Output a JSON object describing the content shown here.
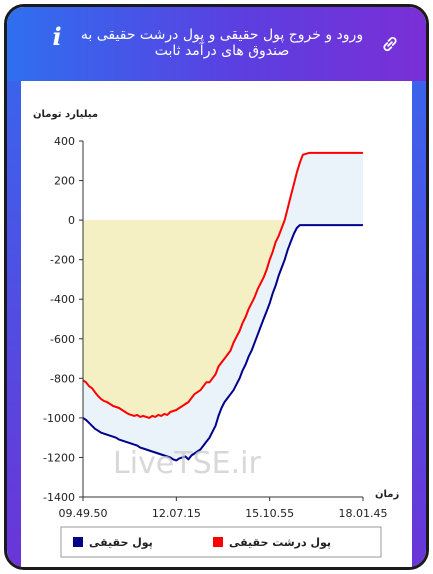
{
  "header": {
    "title": "ورود و خروج پول حقیقی و پول درشت حقیقی به صندوق های درآمد ثابت",
    "info_icon": "i",
    "link_icon": "link-icon"
  },
  "watermark": "LiveTSE.ir",
  "chart_data": {
    "type": "line",
    "ylabel": "میلیارد تومان",
    "xlabel": "زمان",
    "ylim": [
      -1400,
      400
    ],
    "y_ticks": [
      "400",
      "200",
      "0",
      "-200",
      "-400",
      "-600",
      "-800",
      "-1000",
      "-1200",
      "-1400"
    ],
    "x_ticks": [
      "09.49.50",
      "12.07.15",
      "15.10.55",
      "18.01.45"
    ],
    "grid": false,
    "legend_position": "bottom",
    "colors": {
      "big": "#ff0000",
      "real": "#00008b",
      "area_big": "#f5efc4",
      "area_between": "#eaf3fa"
    },
    "series": [
      {
        "name": "پول درشت حقیقی",
        "color": "#ff0000",
        "points": [
          [
            0,
            -810
          ],
          [
            2,
            -820
          ],
          [
            4,
            -840
          ],
          [
            6,
            -850
          ],
          [
            8,
            -870
          ],
          [
            10,
            -890
          ],
          [
            12,
            -905
          ],
          [
            14,
            -915
          ],
          [
            16,
            -920
          ],
          [
            18,
            -930
          ],
          [
            20,
            -940
          ],
          [
            22,
            -945
          ],
          [
            24,
            -950
          ],
          [
            26,
            -960
          ],
          [
            28,
            -970
          ],
          [
            30,
            -980
          ],
          [
            32,
            -985
          ],
          [
            34,
            -990
          ],
          [
            36,
            -985
          ],
          [
            38,
            -995
          ],
          [
            40,
            -990
          ],
          [
            42,
            -995
          ],
          [
            44,
            -1000
          ],
          [
            46,
            -990
          ],
          [
            48,
            -995
          ],
          [
            50,
            -985
          ],
          [
            52,
            -990
          ],
          [
            54,
            -980
          ],
          [
            56,
            -985
          ],
          [
            58,
            -970
          ],
          [
            60,
            -965
          ],
          [
            62,
            -960
          ],
          [
            64,
            -950
          ],
          [
            66,
            -940
          ],
          [
            68,
            -930
          ],
          [
            70,
            -920
          ],
          [
            72,
            -900
          ],
          [
            74,
            -880
          ],
          [
            76,
            -870
          ],
          [
            78,
            -860
          ],
          [
            80,
            -840
          ],
          [
            82,
            -820
          ],
          [
            84,
            -820
          ],
          [
            86,
            -800
          ],
          [
            88,
            -780
          ],
          [
            90,
            -740
          ],
          [
            92,
            -720
          ],
          [
            94,
            -700
          ],
          [
            96,
            -680
          ],
          [
            98,
            -660
          ],
          [
            100,
            -620
          ],
          [
            102,
            -590
          ],
          [
            104,
            -560
          ],
          [
            106,
            -520
          ],
          [
            108,
            -490
          ],
          [
            110,
            -450
          ],
          [
            112,
            -420
          ],
          [
            114,
            -390
          ],
          [
            116,
            -350
          ],
          [
            118,
            -320
          ],
          [
            120,
            -290
          ],
          [
            122,
            -250
          ],
          [
            124,
            -200
          ],
          [
            126,
            -160
          ],
          [
            128,
            -110
          ],
          [
            130,
            -80
          ],
          [
            132,
            -40
          ],
          [
            134,
            0
          ],
          [
            136,
            60
          ],
          [
            138,
            120
          ],
          [
            140,
            180
          ],
          [
            142,
            240
          ],
          [
            144,
            290
          ],
          [
            146,
            330
          ],
          [
            150,
            340
          ],
          [
            160,
            340
          ],
          [
            170,
            340
          ],
          [
            180,
            340
          ],
          [
            186,
            340
          ]
        ]
      },
      {
        "name": "پول حقیقی",
        "color": "#00008b",
        "points": [
          [
            0,
            -1000
          ],
          [
            2,
            -1010
          ],
          [
            4,
            -1025
          ],
          [
            6,
            -1040
          ],
          [
            8,
            -1055
          ],
          [
            10,
            -1065
          ],
          [
            12,
            -1075
          ],
          [
            14,
            -1080
          ],
          [
            16,
            -1085
          ],
          [
            18,
            -1090
          ],
          [
            20,
            -1095
          ],
          [
            22,
            -1100
          ],
          [
            24,
            -1110
          ],
          [
            26,
            -1115
          ],
          [
            28,
            -1120
          ],
          [
            30,
            -1125
          ],
          [
            32,
            -1130
          ],
          [
            34,
            -1135
          ],
          [
            36,
            -1140
          ],
          [
            38,
            -1150
          ],
          [
            40,
            -1155
          ],
          [
            42,
            -1160
          ],
          [
            44,
            -1165
          ],
          [
            46,
            -1170
          ],
          [
            48,
            -1175
          ],
          [
            50,
            -1180
          ],
          [
            52,
            -1185
          ],
          [
            54,
            -1190
          ],
          [
            56,
            -1195
          ],
          [
            58,
            -1200
          ],
          [
            60,
            -1210
          ],
          [
            62,
            -1215
          ],
          [
            64,
            -1205
          ],
          [
            66,
            -1200
          ],
          [
            68,
            -1195
          ],
          [
            70,
            -1210
          ],
          [
            72,
            -1190
          ],
          [
            74,
            -1180
          ],
          [
            76,
            -1170
          ],
          [
            78,
            -1160
          ],
          [
            80,
            -1140
          ],
          [
            82,
            -1120
          ],
          [
            84,
            -1100
          ],
          [
            86,
            -1070
          ],
          [
            88,
            -1040
          ],
          [
            90,
            -990
          ],
          [
            92,
            -950
          ],
          [
            94,
            -920
          ],
          [
            96,
            -900
          ],
          [
            98,
            -880
          ],
          [
            100,
            -860
          ],
          [
            102,
            -830
          ],
          [
            104,
            -800
          ],
          [
            106,
            -760
          ],
          [
            108,
            -730
          ],
          [
            110,
            -690
          ],
          [
            112,
            -660
          ],
          [
            114,
            -620
          ],
          [
            116,
            -580
          ],
          [
            118,
            -540
          ],
          [
            120,
            -500
          ],
          [
            122,
            -460
          ],
          [
            124,
            -420
          ],
          [
            126,
            -370
          ],
          [
            128,
            -330
          ],
          [
            130,
            -280
          ],
          [
            132,
            -240
          ],
          [
            134,
            -200
          ],
          [
            136,
            -150
          ],
          [
            138,
            -110
          ],
          [
            140,
            -70
          ],
          [
            142,
            -40
          ],
          [
            144,
            -25
          ],
          [
            150,
            -25
          ],
          [
            160,
            -25
          ],
          [
            170,
            -25
          ],
          [
            180,
            -25
          ],
          [
            186,
            -25
          ]
        ]
      }
    ]
  }
}
